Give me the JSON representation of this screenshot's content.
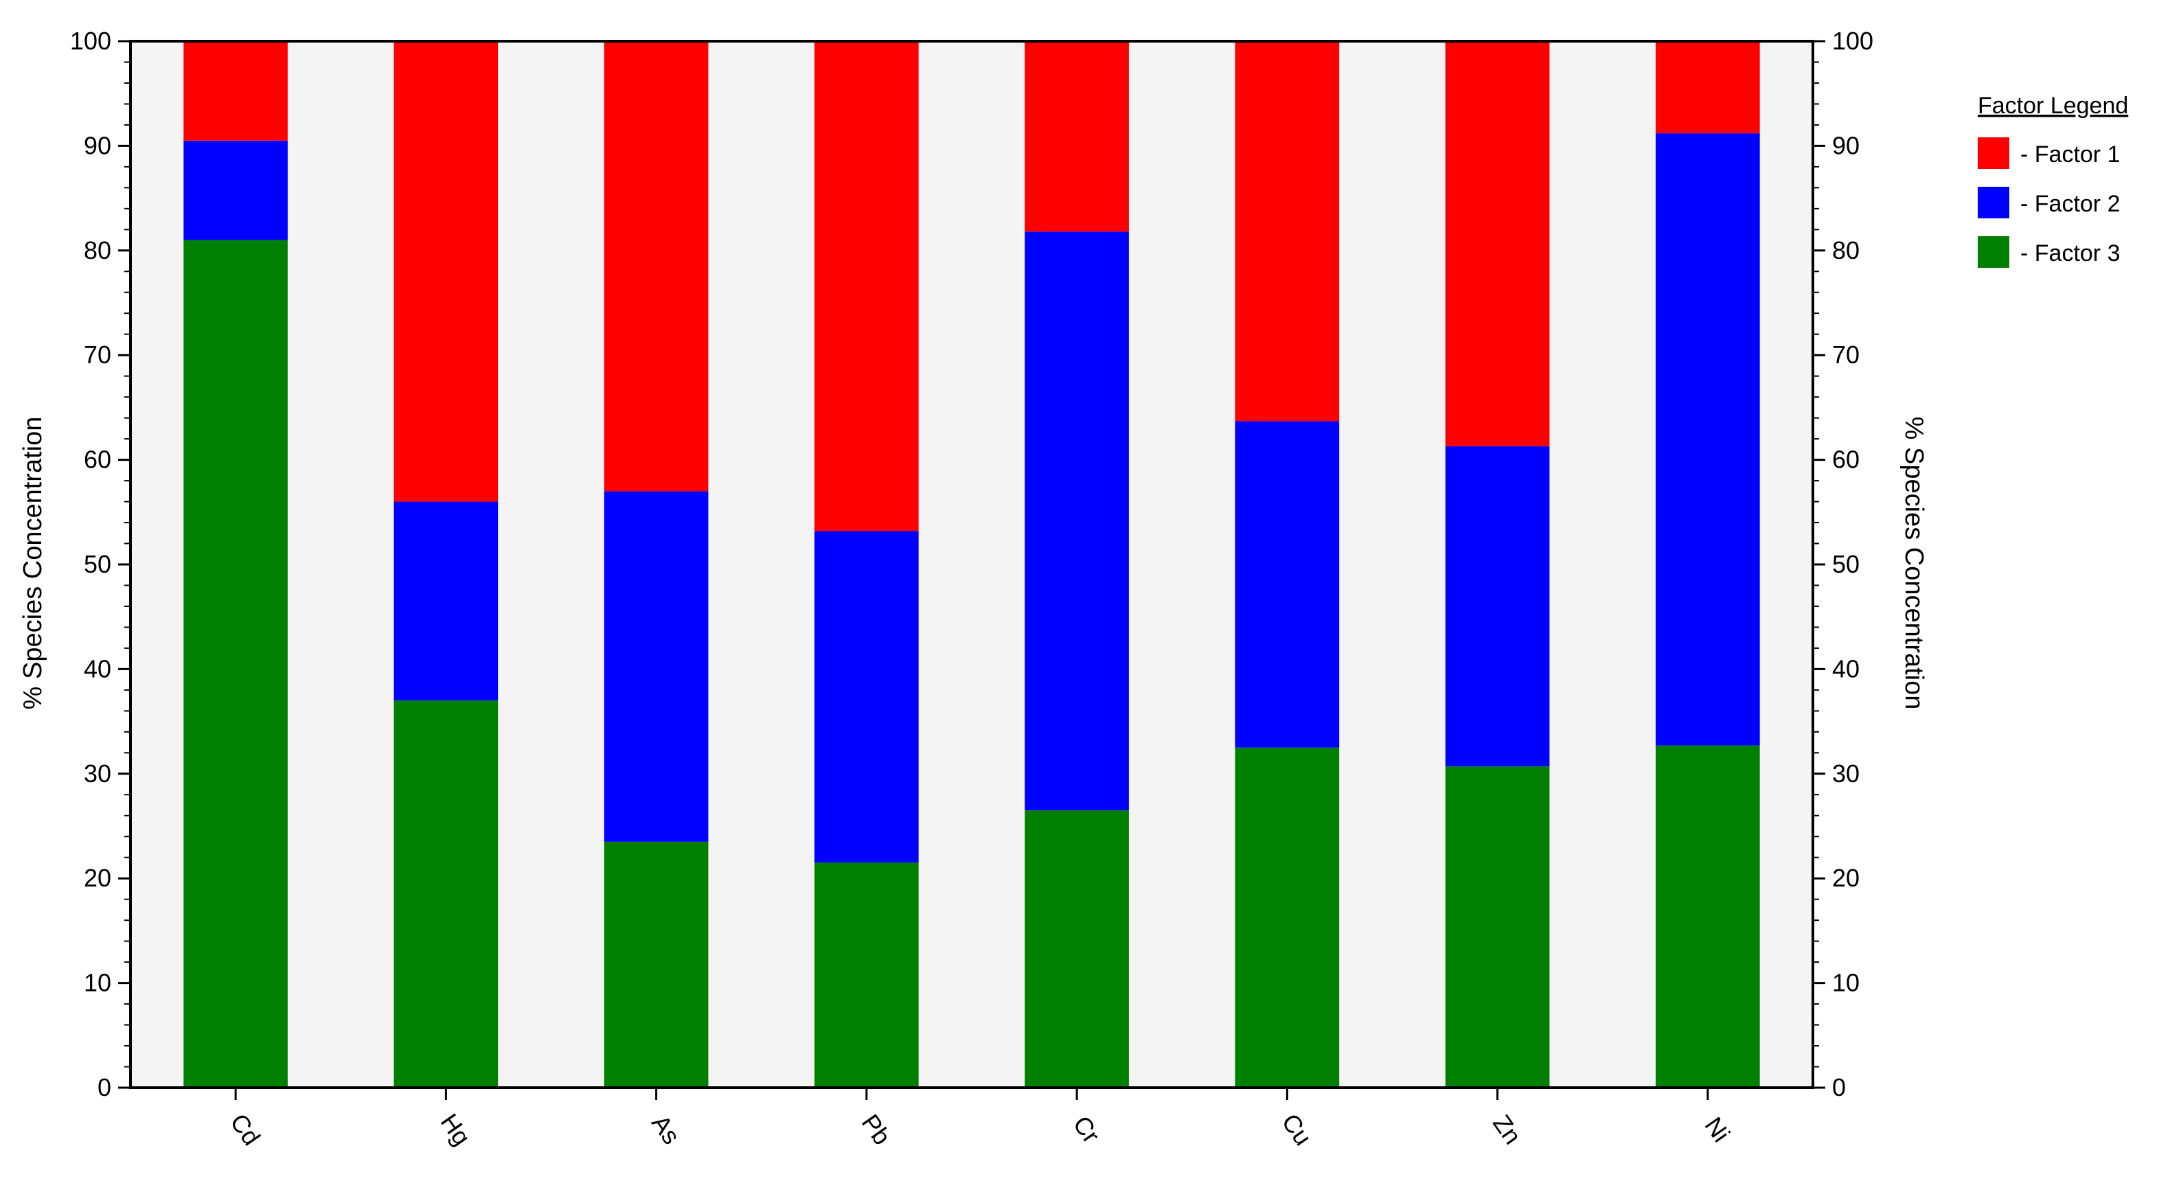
{
  "chart_data": {
    "type": "bar",
    "stacked": true,
    "categories": [
      "Cd",
      "Hg",
      "As",
      "Pb",
      "Cr",
      "Cu",
      "Zn",
      "Ni"
    ],
    "series": [
      {
        "name": "Factor 3",
        "color": "#008000",
        "values": [
          81.0,
          37.0,
          23.5,
          21.5,
          26.5,
          32.5,
          30.7,
          32.7
        ]
      },
      {
        "name": "Factor 2",
        "color": "#0000ff",
        "values": [
          9.5,
          19.0,
          33.5,
          31.7,
          55.3,
          31.2,
          30.6,
          58.5
        ]
      },
      {
        "name": "Factor 1",
        "color": "#ff0000",
        "values": [
          9.5,
          44.0,
          43.0,
          46.8,
          18.2,
          36.3,
          38.7,
          8.8
        ]
      }
    ],
    "ylabel": "% Species Concentration",
    "ylabel_right": "% Species Concentration",
    "ylim": [
      0,
      100
    ],
    "yticks": [
      0,
      10,
      20,
      30,
      40,
      50,
      60,
      70,
      80,
      90,
      100
    ],
    "legend": {
      "title": "Factor Legend",
      "position": "right",
      "entries": [
        {
          "label": "- Factor 1",
          "color": "#ff0000"
        },
        {
          "label": "- Factor 2",
          "color": "#0000ff"
        },
        {
          "label": "- Factor 3",
          "color": "#008000"
        }
      ]
    },
    "grid": false,
    "plot_background": "#f4f4f4"
  }
}
